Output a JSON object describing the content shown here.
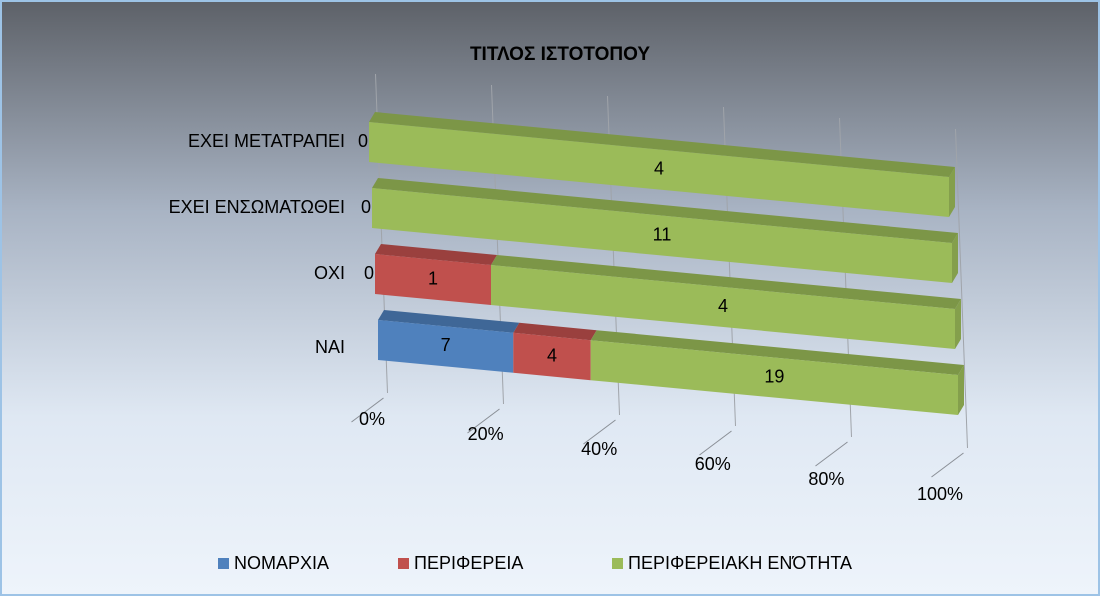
{
  "chart_data": {
    "type": "bar3d",
    "orientation": "horizontal",
    "stacking": "percent",
    "title": "ΤΙΤΛΟΣ ΙΣΤΟΤΟΠΟΥ",
    "categories": [
      "ΝΑΙ",
      "ΟΧΙ",
      "ΕΧΕΙ ΕΝΣΩΜΑΤΩΘΕΙ",
      "ΕΧΕΙ ΜΕΤΑΤΡΑΠΕΙ"
    ],
    "series": [
      {
        "name": "ΝΟΜΑΡΧΙΑ",
        "color": "#4f81bd",
        "values": [
          7,
          0,
          0,
          0
        ]
      },
      {
        "name": "ΠΕΡΙΦΕΡΕΙΑ",
        "color": "#c0504d",
        "values": [
          4,
          1,
          null,
          null
        ]
      },
      {
        "name": "ΠΕΡΙΦΕΡΕΙΑΚΗ ΕΝΌΤΗΤΑ",
        "color": "#9bbb59",
        "values": [
          19,
          4,
          11,
          4
        ]
      }
    ],
    "xlim": [
      0,
      100
    ],
    "xticks": [
      {
        "value": 0,
        "label": "0%"
      },
      {
        "value": 20,
        "label": "20%"
      },
      {
        "value": 40,
        "label": "40%"
      },
      {
        "value": 60,
        "label": "60%"
      },
      {
        "value": 80,
        "label": "80%"
      },
      {
        "value": 100,
        "label": "100%"
      }
    ],
    "grid": true,
    "legend": "bottom"
  }
}
